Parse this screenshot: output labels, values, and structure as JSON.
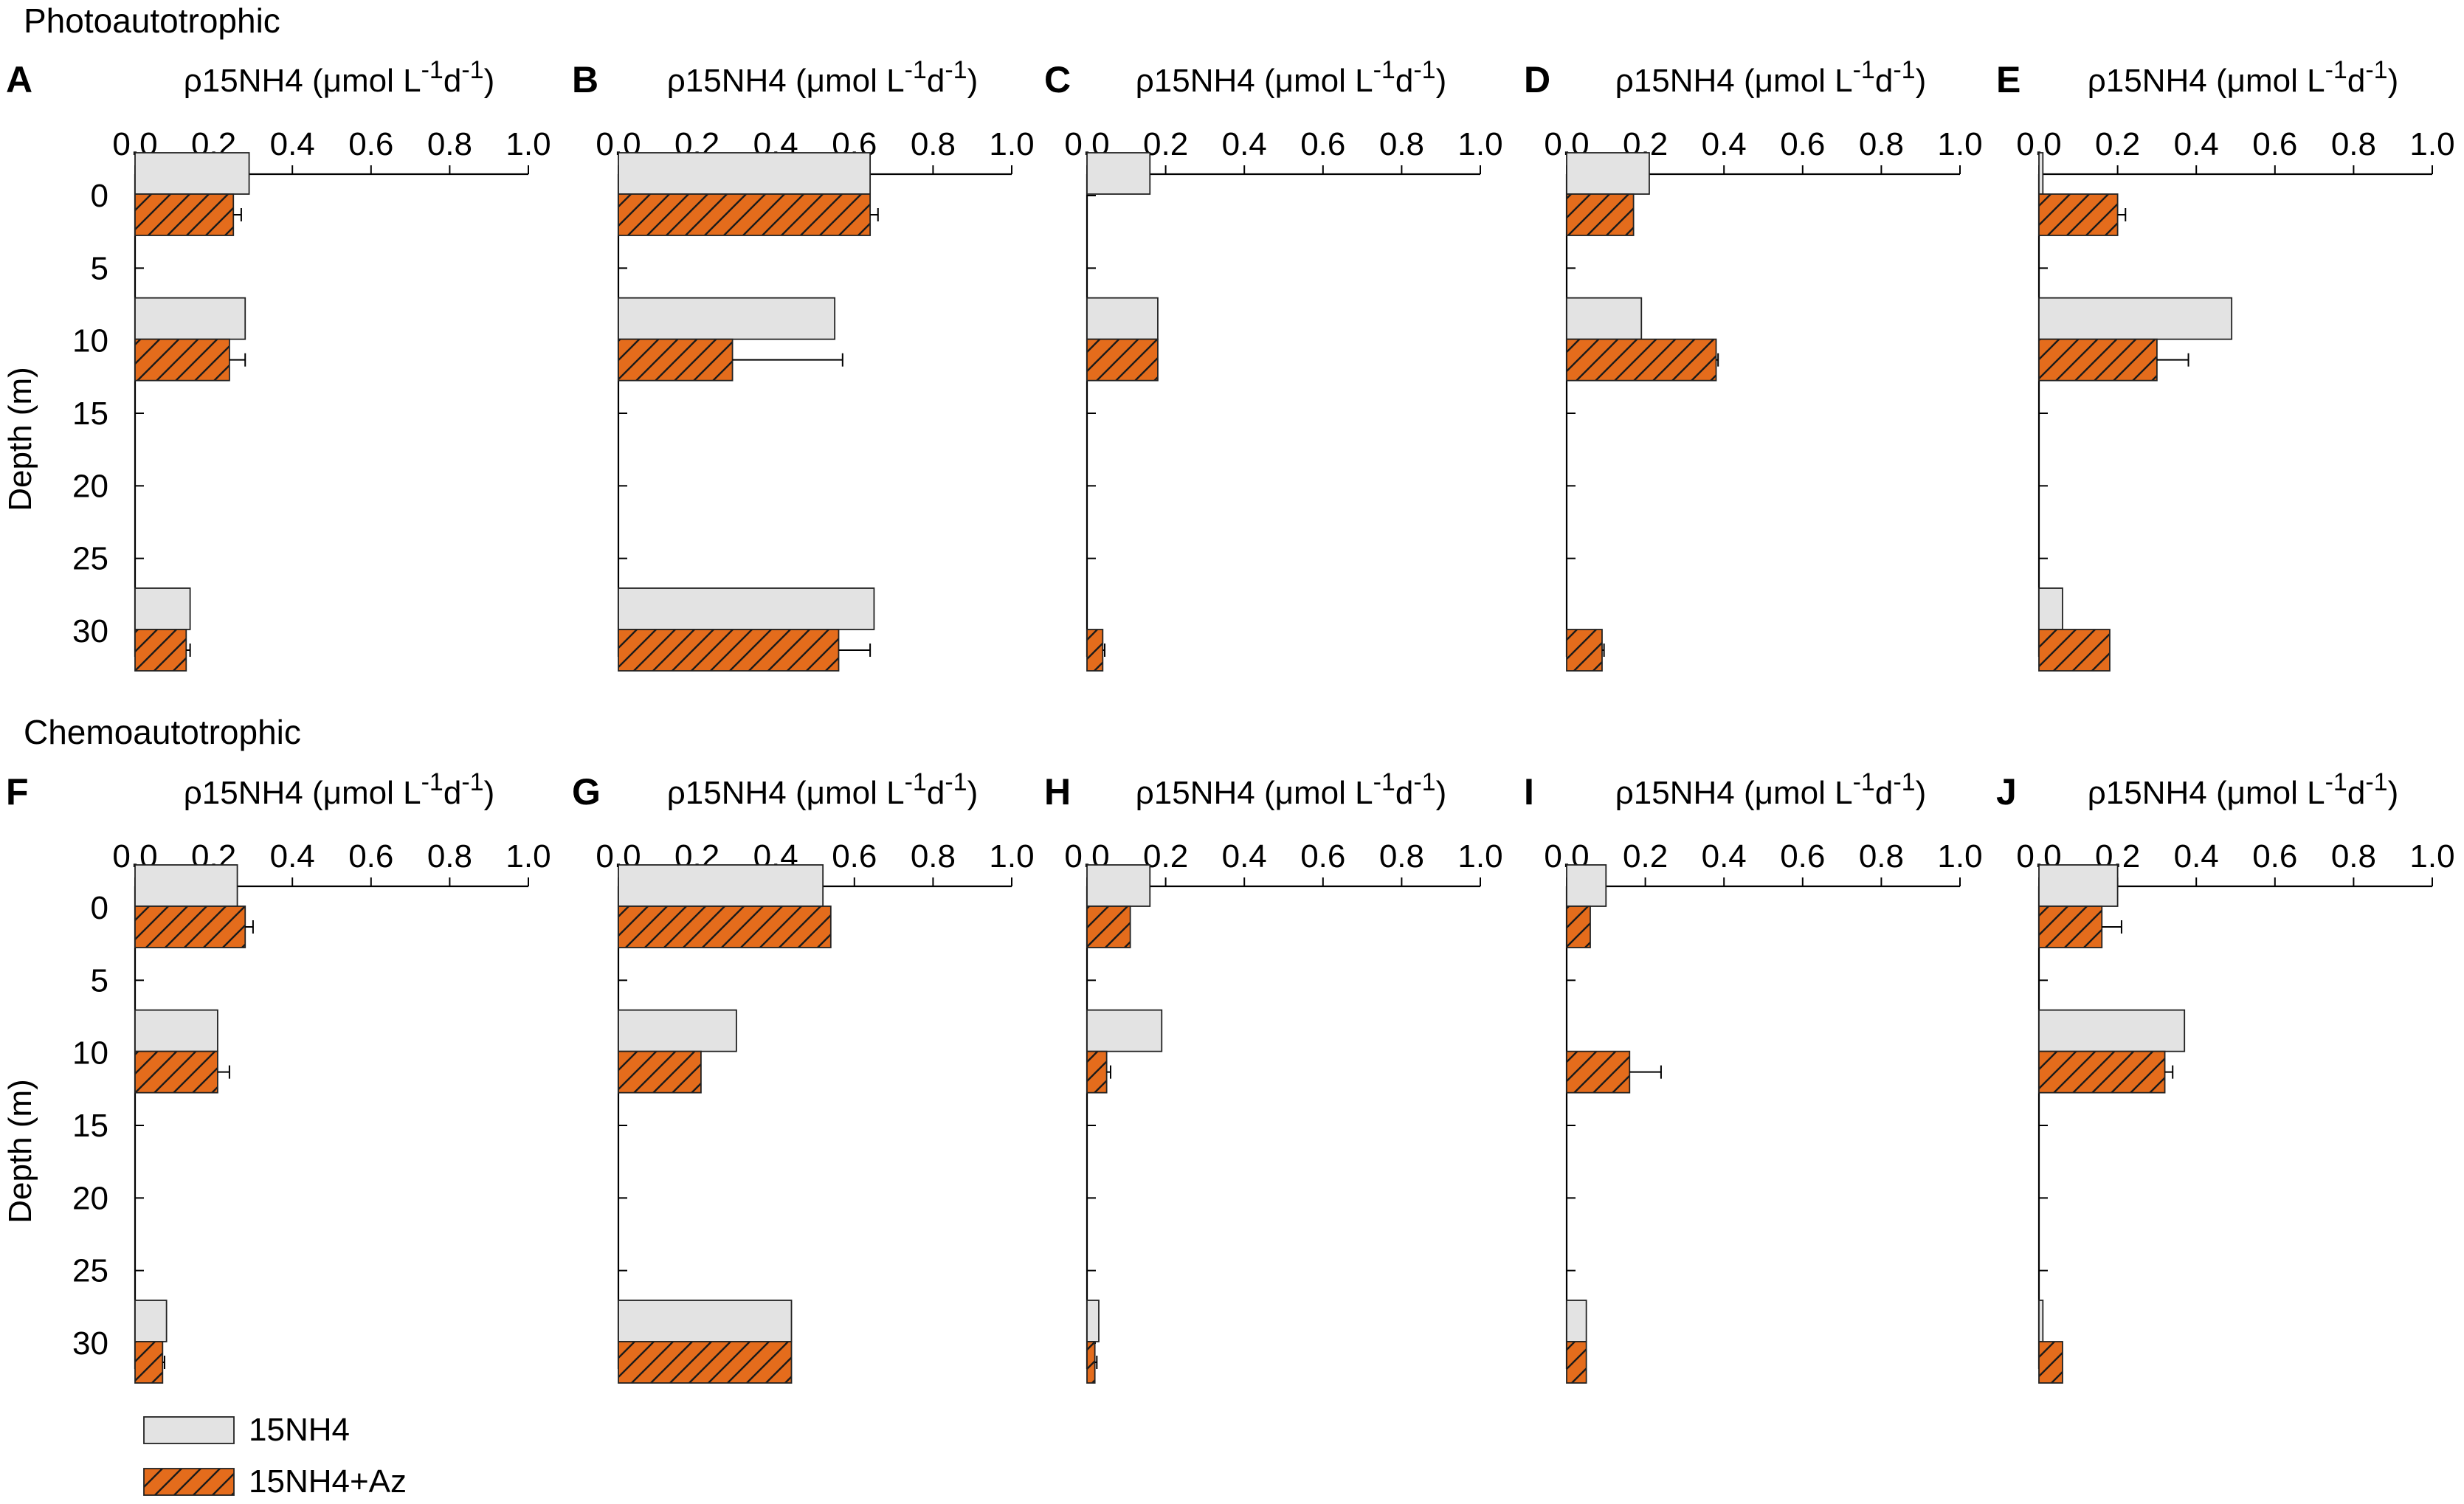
{
  "sections": [
    {
      "title": "Photoautotrophic"
    },
    {
      "title": "Chemoautotrophic"
    }
  ],
  "colors": {
    "series_15NH4": "#e3e3e3",
    "series_15NH4_Az": "#e46c1c",
    "hatch": "#1a1a1a",
    "axis": "#000000"
  },
  "x_axis_title": {
    "rho": "ρ",
    "main": "15NH4 (",
    "mu": "μ",
    "mol": "mol L",
    "sup1": "-1",
    "d": "d",
    "sup2": "-1",
    "close": ")"
  },
  "y_axis_title": "Depth (m)",
  "legend": [
    {
      "label": "15NH4",
      "fill": "plain",
      "color": "#e3e3e3"
    },
    {
      "label": "15NH4+Az",
      "fill": "hatched",
      "color": "#e46c1c"
    }
  ],
  "chart_data": [
    {
      "panel": "A",
      "section": "Photoautotrophic",
      "type": "bar",
      "orientation": "horizontal",
      "xlim": [
        0,
        1.0
      ],
      "xticks": [
        "0.0",
        "0.2",
        "0.4",
        "0.6",
        "0.8",
        "1.0"
      ],
      "ylim": [
        0,
        33
      ],
      "yticks": [
        "0",
        "5",
        "10",
        "15",
        "20",
        "25",
        "30"
      ],
      "depths": [
        0,
        10,
        30
      ],
      "series": [
        {
          "name": "15NH4",
          "values": [
            0.29,
            0.28,
            0.14
          ],
          "errors": [
            0,
            0,
            0
          ]
        },
        {
          "name": "15NH4+Az",
          "values": [
            0.25,
            0.24,
            0.13
          ],
          "errors": [
            0.02,
            0.04,
            0.01
          ]
        }
      ]
    },
    {
      "panel": "B",
      "section": "Photoautotrophic",
      "type": "bar",
      "orientation": "horizontal",
      "xlim": [
        0,
        1.0
      ],
      "xticks": [
        "0.0",
        "0.2",
        "0.4",
        "0.6",
        "0.8",
        "1.0"
      ],
      "ylim": [
        0,
        33
      ],
      "yticks": [],
      "depths": [
        0,
        10,
        30
      ],
      "series": [
        {
          "name": "15NH4",
          "values": [
            0.64,
            0.55,
            0.65
          ],
          "errors": [
            0,
            0,
            0
          ]
        },
        {
          "name": "15NH4+Az",
          "values": [
            0.64,
            0.29,
            0.56
          ],
          "errors": [
            0.02,
            0.28,
            0.08
          ]
        }
      ]
    },
    {
      "panel": "C",
      "section": "Photoautotrophic",
      "type": "bar",
      "orientation": "horizontal",
      "xlim": [
        0,
        1.0
      ],
      "xticks": [
        "0.0",
        "0.2",
        "0.4",
        "0.6",
        "0.8",
        "1.0"
      ],
      "ylim": [
        0,
        33
      ],
      "yticks": [],
      "depths": [
        0,
        10,
        30
      ],
      "series": [
        {
          "name": "15NH4",
          "values": [
            0.16,
            0.18,
            0.0
          ],
          "errors": [
            0,
            0,
            0
          ]
        },
        {
          "name": "15NH4+Az",
          "values": [
            0.0,
            0.18,
            0.04
          ],
          "errors": [
            0,
            0,
            0.005
          ]
        }
      ]
    },
    {
      "panel": "D",
      "section": "Photoautotrophic",
      "type": "bar",
      "orientation": "horizontal",
      "xlim": [
        0,
        1.0
      ],
      "xticks": [
        "0.0",
        "0.2",
        "0.4",
        "0.6",
        "0.8",
        "1.0"
      ],
      "ylim": [
        0,
        33
      ],
      "yticks": [],
      "depths": [
        0,
        10,
        30
      ],
      "series": [
        {
          "name": "15NH4",
          "values": [
            0.21,
            0.19,
            0.0
          ],
          "errors": [
            0,
            0,
            0
          ]
        },
        {
          "name": "15NH4+Az",
          "values": [
            0.17,
            0.38,
            0.09
          ],
          "errors": [
            0,
            0.005,
            0.005
          ]
        }
      ]
    },
    {
      "panel": "E",
      "section": "Photoautotrophic",
      "type": "bar",
      "orientation": "horizontal",
      "xlim": [
        0,
        1.0
      ],
      "xticks": [
        "0.0",
        "0.2",
        "0.4",
        "0.6",
        "0.8",
        "1.0"
      ],
      "ylim": [
        0,
        33
      ],
      "yticks": [],
      "depths": [
        0,
        10,
        30
      ],
      "series": [
        {
          "name": "15NH4",
          "values": [
            0.01,
            0.49,
            0.06
          ],
          "errors": [
            0,
            0,
            0
          ]
        },
        {
          "name": "15NH4+Az",
          "values": [
            0.2,
            0.3,
            0.18
          ],
          "errors": [
            0.02,
            0.08,
            0
          ]
        }
      ]
    },
    {
      "panel": "F",
      "section": "Chemoautotrophic",
      "type": "bar",
      "orientation": "horizontal",
      "xlim": [
        0,
        1.0
      ],
      "xticks": [
        "0.0",
        "0.2",
        "0.4",
        "0.6",
        "0.8",
        "1.0"
      ],
      "ylim": [
        0,
        33
      ],
      "yticks": [
        "0",
        "5",
        "10",
        "15",
        "20",
        "25",
        "30"
      ],
      "depths": [
        0,
        10,
        30
      ],
      "series": [
        {
          "name": "15NH4",
          "values": [
            0.26,
            0.21,
            0.08
          ],
          "errors": [
            0,
            0,
            0
          ]
        },
        {
          "name": "15NH4+Az",
          "values": [
            0.28,
            0.21,
            0.07
          ],
          "errors": [
            0.02,
            0.03,
            0.005
          ]
        }
      ]
    },
    {
      "panel": "G",
      "section": "Chemoautotrophic",
      "type": "bar",
      "orientation": "horizontal",
      "xlim": [
        0,
        1.0
      ],
      "xticks": [
        "0.0",
        "0.2",
        "0.4",
        "0.6",
        "0.8",
        "1.0"
      ],
      "ylim": [
        0,
        33
      ],
      "yticks": [],
      "depths": [
        0,
        10,
        30
      ],
      "series": [
        {
          "name": "15NH4",
          "values": [
            0.52,
            0.3,
            0.44
          ],
          "errors": [
            0,
            0,
            0
          ]
        },
        {
          "name": "15NH4+Az",
          "values": [
            0.54,
            0.21,
            0.44
          ],
          "errors": [
            0,
            0,
            0
          ]
        }
      ]
    },
    {
      "panel": "H",
      "section": "Chemoautotrophic",
      "type": "bar",
      "orientation": "horizontal",
      "xlim": [
        0,
        1.0
      ],
      "xticks": [
        "0.0",
        "0.2",
        "0.4",
        "0.6",
        "0.8",
        "1.0"
      ],
      "ylim": [
        0,
        33
      ],
      "yticks": [],
      "depths": [
        0,
        10,
        30
      ],
      "series": [
        {
          "name": "15NH4",
          "values": [
            0.16,
            0.19,
            0.03
          ],
          "errors": [
            0,
            0,
            0
          ]
        },
        {
          "name": "15NH4+Az",
          "values": [
            0.11,
            0.05,
            0.02
          ],
          "errors": [
            0,
            0.01,
            0.005
          ]
        }
      ]
    },
    {
      "panel": "I",
      "section": "Chemoautotrophic",
      "type": "bar",
      "orientation": "horizontal",
      "xlim": [
        0,
        1.0
      ],
      "xticks": [
        "0.0",
        "0.2",
        "0.4",
        "0.6",
        "0.8",
        "1.0"
      ],
      "ylim": [
        0,
        33
      ],
      "yticks": [],
      "depths": [
        0,
        10,
        30
      ],
      "series": [
        {
          "name": "15NH4",
          "values": [
            0.1,
            0.0,
            0.05
          ],
          "errors": [
            0,
            0,
            0
          ]
        },
        {
          "name": "15NH4+Az",
          "values": [
            0.06,
            0.16,
            0.05
          ],
          "errors": [
            0,
            0.08,
            0
          ]
        }
      ]
    },
    {
      "panel": "J",
      "section": "Chemoautotrophic",
      "type": "bar",
      "orientation": "horizontal",
      "xlim": [
        0,
        1.0
      ],
      "xticks": [
        "0.0",
        "0.2",
        "0.4",
        "0.6",
        "0.8",
        "1.0"
      ],
      "ylim": [
        0,
        33
      ],
      "yticks": [],
      "depths": [
        0,
        10,
        30
      ],
      "series": [
        {
          "name": "15NH4",
          "values": [
            0.2,
            0.37,
            0.01
          ],
          "errors": [
            0,
            0,
            0
          ]
        },
        {
          "name": "15NH4+Az",
          "values": [
            0.16,
            0.32,
            0.06
          ],
          "errors": [
            0.05,
            0.02,
            0
          ]
        }
      ]
    }
  ]
}
